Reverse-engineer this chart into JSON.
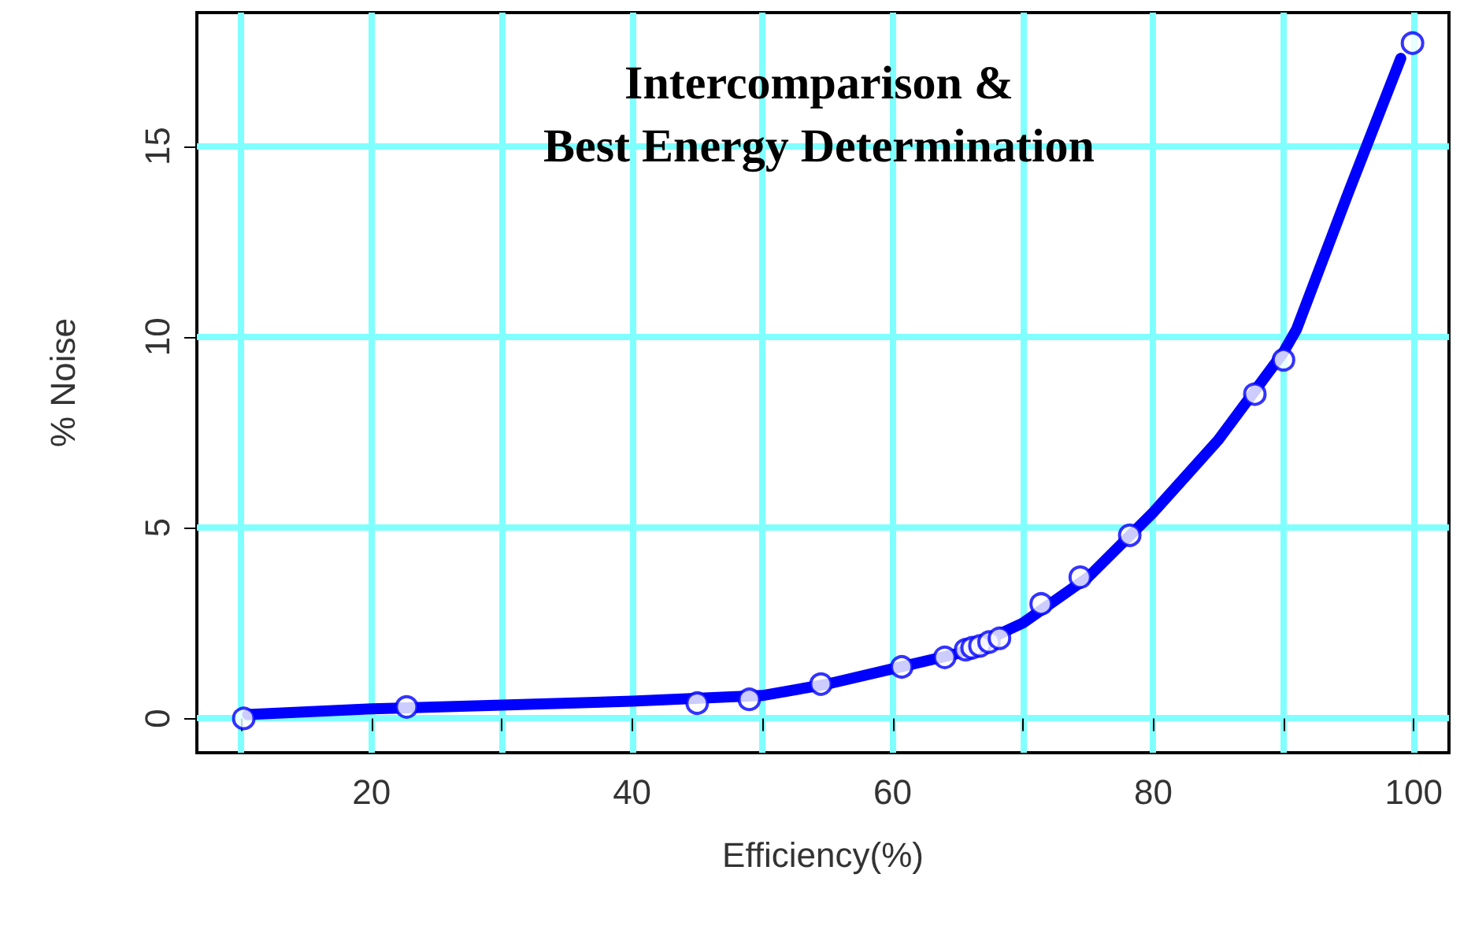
{
  "chart_data": {
    "type": "scatter",
    "title": "Intercomparison &\nBest Energy Determination",
    "xlabel": "Efficiency(%)",
    "ylabel": "% Noise",
    "xlim": [
      6.6,
      102.7
    ],
    "ylim": [
      -0.9,
      18.5
    ],
    "xticks": [
      {
        "value": 10,
        "label": null
      },
      20,
      {
        "value": 30,
        "label": null
      },
      40,
      {
        "value": 50,
        "label": null
      },
      60,
      {
        "value": 70,
        "label": null
      },
      80,
      {
        "value": 90,
        "label": null
      },
      100
    ],
    "yticks": [
      0,
      5,
      10,
      15
    ],
    "grid": true,
    "marker": "circle",
    "series": [
      {
        "type": "line",
        "color": "#0000ff",
        "marker": "none",
        "x": [
          10.5,
          20,
          30,
          40,
          50,
          55,
          60,
          65,
          70,
          75,
          80,
          85,
          90,
          91,
          95,
          99
        ],
        "values": [
          0.1,
          0.25,
          0.35,
          0.45,
          0.6,
          0.9,
          1.3,
          1.7,
          2.5,
          3.7,
          5.4,
          7.3,
          9.6,
          10.2,
          13.8,
          17.3
        ]
      },
      {
        "color": "#0000ff",
        "x": [
          10.2,
          22.7,
          45.0,
          49.0,
          54.5,
          60.7,
          64.0,
          65.6,
          66.1,
          66.7,
          67.4,
          68.2,
          71.4,
          74.4,
          78.2,
          87.8,
          90.0,
          99.9
        ],
        "values": [
          0.0,
          0.3,
          0.4,
          0.5,
          0.9,
          1.35,
          1.6,
          1.8,
          1.85,
          1.9,
          2.0,
          2.1,
          3.0,
          3.7,
          4.8,
          8.5,
          9.4,
          17.7
        ]
      }
    ]
  }
}
